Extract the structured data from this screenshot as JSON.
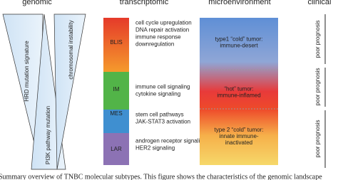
{
  "headers": {
    "genomic": "genomic",
    "transcriptomic": "transcriptomic",
    "microenvironment": "microenvironment",
    "clinical": "clinical"
  },
  "genomic": {
    "markers": [
      "HRD mutation signature",
      "PI3K pathway mutation",
      "chromosomal instability"
    ]
  },
  "transcriptomic": {
    "subtypes": [
      {
        "name": "BLIS",
        "features": [
          "cell cycle upregulation",
          "DNA repair activation",
          "immune response",
          "downregulation"
        ]
      },
      {
        "name": "IM",
        "features": [
          "immune cell signaling",
          "cytokine signaling"
        ]
      },
      {
        "name": "MES",
        "features": [
          "stem cell pathways",
          "JAK-STAT3 activation"
        ]
      },
      {
        "name": "LAR",
        "features": [
          "androgen receptor signaling",
          "HER2 signaling"
        ]
      }
    ]
  },
  "microenvironment": {
    "states": [
      {
        "lines": [
          "type1 “cold” tumor:",
          "immune-desert"
        ]
      },
      {
        "lines": [
          "“hot” tumor:",
          "immune-inflamed"
        ]
      },
      {
        "lines": [
          "type 2 “cold” tumor:",
          "innate immune-",
          "inactivated"
        ]
      }
    ]
  },
  "clinical": {
    "labels": [
      "poor prognosis",
      "poor prognosis",
      "poor prognosis"
    ]
  },
  "caption": "Summary overview of TNBC molecular subtypes. This figure shows the characteristics of the genomic landscape"
}
